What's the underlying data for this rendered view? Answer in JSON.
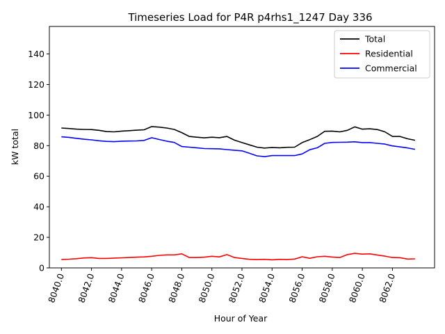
{
  "chart_data": {
    "type": "line",
    "title": "Timeseries Load for P4R p4rhs1_1247  Day 336",
    "xlabel": "Hour of Year",
    "ylabel": "kW total",
    "xlim": [
      8039.2,
      8064.8
    ],
    "ylim": [
      0,
      158
    ],
    "x_ticks": [
      8040,
      8042,
      8044,
      8046,
      8048,
      8050,
      8052,
      8054,
      8056,
      8058,
      8060,
      8062
    ],
    "x_tick_labels": [
      "8040.0",
      "8042.0",
      "8044.0",
      "8046.0",
      "8048.0",
      "8050.0",
      "8052.0",
      "8054.0",
      "8056.0",
      "8058.0",
      "8060.0",
      "8062.0"
    ],
    "y_ticks": [
      0,
      20,
      40,
      60,
      80,
      100,
      120,
      140
    ],
    "y_tick_labels": [
      "0",
      "20",
      "40",
      "60",
      "80",
      "100",
      "120",
      "140"
    ],
    "legend_position": "top-right",
    "x": [
      8040,
      8040.5,
      8041,
      8041.5,
      8042,
      8042.5,
      8043,
      8043.5,
      8044,
      8044.5,
      8045,
      8045.5,
      8046,
      8046.5,
      8047,
      8047.5,
      8048,
      8048.5,
      8049,
      8049.5,
      8050,
      8050.5,
      8051,
      8051.5,
      8052,
      8052.5,
      8053,
      8053.5,
      8054,
      8054.5,
      8055,
      8055.5,
      8056,
      8056.5,
      8057,
      8057.5,
      8058,
      8058.5,
      8059,
      8059.5,
      8060,
      8060.5,
      8061,
      8061.5,
      8062,
      8062.5,
      8063,
      8063.5
    ],
    "series": [
      {
        "name": "Total",
        "color": "#000000",
        "values": [
          91.5,
          91.2,
          90.8,
          90.6,
          90.5,
          90.0,
          89.2,
          89.0,
          89.5,
          89.8,
          90.1,
          90.4,
          92.5,
          92.1,
          91.5,
          90.6,
          88.5,
          86.0,
          85.5,
          85.1,
          85.5,
          85.2,
          86.0,
          83.6,
          82.0,
          80.5,
          79.0,
          78.4,
          78.8,
          78.6,
          78.9,
          79.0,
          82.0,
          83.9,
          86.0,
          89.4,
          89.5,
          89.0,
          90.0,
          92.3,
          90.8,
          91.0,
          90.5,
          89.0,
          86.0,
          86.0,
          84.5,
          83.5
        ]
      },
      {
        "name": "Residential",
        "color": "#ff0000",
        "values": [
          5.5,
          5.7,
          6.0,
          6.5,
          6.7,
          6.2,
          6.2,
          6.4,
          6.6,
          6.8,
          7.0,
          7.2,
          7.6,
          8.2,
          8.5,
          8.5,
          9.2,
          6.8,
          6.8,
          7.0,
          7.6,
          7.2,
          8.7,
          6.8,
          6.2,
          5.6,
          5.5,
          5.6,
          5.3,
          5.6,
          5.5,
          5.8,
          7.3,
          6.3,
          7.3,
          7.6,
          7.1,
          6.8,
          8.7,
          9.5,
          9.0,
          9.2,
          8.4,
          7.7,
          6.8,
          6.7,
          5.8,
          5.9
        ]
      },
      {
        "name": "Commercial",
        "color": "#0000ff",
        "values": [
          85.8,
          85.4,
          84.8,
          84.2,
          83.8,
          83.2,
          82.8,
          82.6,
          82.9,
          83.0,
          83.1,
          83.4,
          85.2,
          84.0,
          82.9,
          82.1,
          79.4,
          79.0,
          78.6,
          78.1,
          78.0,
          77.9,
          77.4,
          77.0,
          76.6,
          75.0,
          73.3,
          72.8,
          73.5,
          73.5,
          73.5,
          73.5,
          74.6,
          77.3,
          78.6,
          81.5,
          82.1,
          82.2,
          82.3,
          82.5,
          82.0,
          82.0,
          81.5,
          81.0,
          79.8,
          79.2,
          78.5,
          77.6
        ]
      }
    ]
  }
}
